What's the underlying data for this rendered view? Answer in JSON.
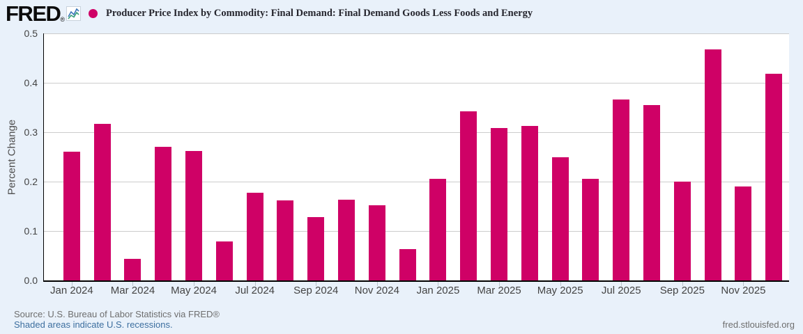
{
  "header": {
    "logo_text": "FRED",
    "registered_mark": "®",
    "series_title": "Producer Price Index by Commodity: Final Demand: Final Demand Goods Less Foods and Energy"
  },
  "chart_data": {
    "type": "bar",
    "title": "Producer Price Index by Commodity: Final Demand: Final Demand Goods Less Foods and Energy",
    "xlabel": "",
    "ylabel": "Percent Change",
    "ylim": [
      0,
      0.5
    ],
    "yticks": [
      "0.5",
      "0.4",
      "0.3",
      "0.2",
      "0.1",
      "0.0"
    ],
    "grid": true,
    "legend_position": "top-left",
    "categories": [
      "Jan 2024",
      "Feb 2024",
      "Mar 2024",
      "Apr 2024",
      "May 2024",
      "Jun 2024",
      "Jul 2024",
      "Aug 2024",
      "Sep 2024",
      "Oct 2024",
      "Nov 2024",
      "Dec 2024",
      "Jan 2025",
      "Feb 2025",
      "Mar 2025",
      "Apr 2025",
      "May 2025",
      "Jun 2025",
      "Jul 2025",
      "Aug 2025",
      "Sep 2025",
      "Oct 2025",
      "Nov 2025",
      "Dec 2025"
    ],
    "values": [
      0.261,
      0.317,
      0.044,
      0.27,
      0.262,
      0.079,
      0.177,
      0.162,
      0.128,
      0.164,
      0.152,
      0.064,
      0.206,
      0.342,
      0.309,
      0.313,
      0.249,
      0.206,
      0.366,
      0.355,
      0.2,
      0.468,
      0.19,
      0.419
    ],
    "x_tick_labels": [
      "Jan 2024",
      "Mar 2024",
      "May 2024",
      "Jul 2024",
      "Sep 2024",
      "Nov 2024",
      "Jan 2025",
      "Mar 2025",
      "May 2025",
      "Jul 2025",
      "Sep 2025",
      "Nov 2025"
    ]
  },
  "footer": {
    "source": "Source: U.S. Bureau of Labor Statistics via FRED®",
    "recession_note": "Shaded areas indicate U.S. recessions.",
    "site": "fred.stlouisfed.org"
  },
  "colors": {
    "background": "#e9f1fa",
    "plot_background": "#ffffff",
    "bar": "#cf0166",
    "legend_dot": "#cf0166",
    "gridline": "#cccccc",
    "axis_line": "#000000",
    "tick_text": "#434343",
    "title_text": "#26262e",
    "source_text": "#6e6e6e",
    "link_text": "#3c6e9f",
    "logo_icon_blue": "#3a76b8",
    "logo_icon_green": "#359e77"
  }
}
